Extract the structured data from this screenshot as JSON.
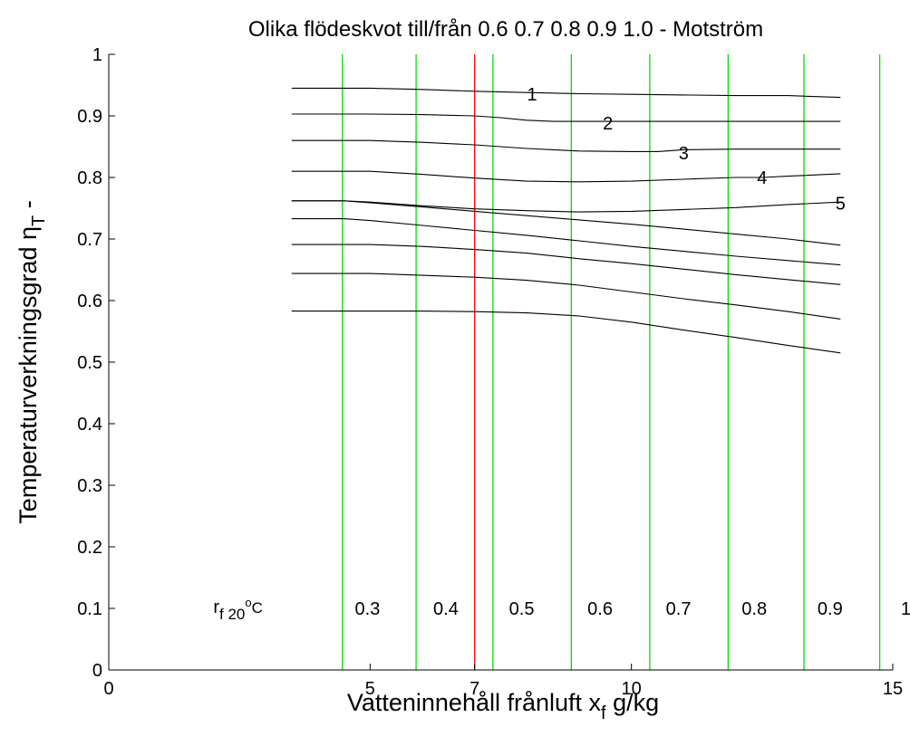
{
  "chart_data": {
    "type": "line",
    "title": "Olika flödeskvot till/från  0.6  0.7  0.8  0.9  1.0 -   Motström",
    "xlabel": {
      "main": "Vatteninnehåll frånluft  x",
      "sub": "f",
      "tail": "  g/kg"
    },
    "ylabel": {
      "main": "Temperaturverkningsgrad η",
      "sub": "T",
      "tail": "  -"
    },
    "xlim": [
      0,
      15
    ],
    "ylim": [
      0,
      1
    ],
    "xticks": [
      0,
      5,
      7,
      10,
      15
    ],
    "yticks": [
      0,
      0.1,
      0.2,
      0.3,
      0.4,
      0.5,
      0.6,
      0.7,
      0.8,
      0.9,
      1
    ],
    "grid": false,
    "series": [
      {
        "x": [
          3.5,
          5.0,
          6.0,
          7.0,
          8.0,
          9.0,
          10.0,
          11.0,
          12.0,
          13.0,
          14.0
        ],
        "y": [
          0.945,
          0.945,
          0.943,
          0.94,
          0.938,
          0.936,
          0.935,
          0.934,
          0.933,
          0.933,
          0.93
        ]
      },
      {
        "x": [
          3.5,
          5.0,
          6.0,
          7.0,
          7.5,
          8.0,
          8.5,
          9.0,
          10.0,
          11.0,
          12.0,
          13.0,
          14.0
        ],
        "y": [
          0.903,
          0.903,
          0.902,
          0.9,
          0.897,
          0.893,
          0.891,
          0.891,
          0.891,
          0.891,
          0.891,
          0.891,
          0.891
        ]
      },
      {
        "x": [
          3.5,
          5.0,
          6.0,
          7.0,
          7.5,
          8.0,
          8.5,
          9.0,
          10.0,
          10.5,
          11.0,
          12.0,
          13.0,
          14.0
        ],
        "y": [
          0.86,
          0.86,
          0.857,
          0.853,
          0.85,
          0.847,
          0.845,
          0.843,
          0.842,
          0.842,
          0.845,
          0.846,
          0.846,
          0.846
        ]
      },
      {
        "x": [
          3.5,
          5.0,
          6.0,
          7.0,
          8.0,
          9.0,
          10.0,
          11.0,
          12.0,
          12.5,
          13.0,
          14.0
        ],
        "y": [
          0.81,
          0.81,
          0.805,
          0.799,
          0.794,
          0.793,
          0.794,
          0.797,
          0.8,
          0.8,
          0.802,
          0.806
        ]
      },
      {
        "x": [
          3.5,
          4.5,
          5.0,
          6.0,
          7.0,
          8.0,
          9.0,
          10.0,
          11.0,
          12.0,
          13.0,
          14.0
        ],
        "y": [
          0.762,
          0.762,
          0.76,
          0.754,
          0.749,
          0.746,
          0.744,
          0.745,
          0.748,
          0.751,
          0.756,
          0.76
        ]
      },
      {
        "x": [
          3.5,
          4.5,
          5.0,
          6.0,
          7.0,
          8.0,
          9.0,
          10.0,
          11.0,
          12.0,
          13.0,
          14.0
        ],
        "y": [
          0.762,
          0.762,
          0.759,
          0.752,
          0.745,
          0.738,
          0.731,
          0.724,
          0.716,
          0.708,
          0.7,
          0.69
        ]
      },
      {
        "x": [
          3.5,
          4.5,
          5.0,
          6.0,
          7.0,
          8.0,
          9.0,
          10.0,
          11.0,
          12.0,
          13.0,
          14.0
        ],
        "y": [
          0.733,
          0.733,
          0.73,
          0.722,
          0.714,
          0.706,
          0.697,
          0.688,
          0.68,
          0.672,
          0.665,
          0.658
        ]
      },
      {
        "x": [
          3.5,
          5.0,
          6.0,
          7.0,
          8.0,
          9.0,
          10.0,
          11.0,
          12.0,
          13.0,
          14.0
        ],
        "y": [
          0.691,
          0.691,
          0.688,
          0.683,
          0.677,
          0.668,
          0.66,
          0.651,
          0.642,
          0.634,
          0.626
        ]
      },
      {
        "x": [
          3.5,
          5.0,
          6.0,
          7.0,
          8.0,
          9.0,
          10.0,
          11.0,
          12.0,
          13.0,
          14.0
        ],
        "y": [
          0.644,
          0.644,
          0.641,
          0.638,
          0.633,
          0.625,
          0.614,
          0.603,
          0.593,
          0.582,
          0.57
        ]
      },
      {
        "x": [
          3.5,
          5.0,
          6.0,
          7.0,
          8.0,
          9.0,
          10.0,
          11.0,
          12.0,
          13.0,
          14.0
        ],
        "y": [
          0.583,
          0.583,
          0.583,
          0.582,
          0.58,
          0.575,
          0.565,
          0.552,
          0.54,
          0.527,
          0.515
        ]
      }
    ],
    "vlines": [
      {
        "x": 4.47,
        "color": "#00dc00"
      },
      {
        "x": 5.88,
        "color": "#00dc00"
      },
      {
        "x": 7.0,
        "color": "#ff0000"
      },
      {
        "x": 7.35,
        "color": "#00dc00"
      },
      {
        "x": 8.85,
        "color": "#00dc00"
      },
      {
        "x": 10.35,
        "color": "#00dc00"
      },
      {
        "x": 11.85,
        "color": "#00dc00"
      },
      {
        "x": 13.3,
        "color": "#00dc00"
      },
      {
        "x": 14.75,
        "color": "#00dc00"
      }
    ],
    "curve_labels": [
      {
        "text": "1",
        "x": 8.1,
        "y": 0.935
      },
      {
        "text": "2",
        "x": 9.55,
        "y": 0.888
      },
      {
        "text": "3",
        "x": 11.0,
        "y": 0.84
      },
      {
        "text": "4",
        "x": 12.5,
        "y": 0.8
      },
      {
        "text": "5",
        "x": 14.0,
        "y": 0.758
      }
    ],
    "rf_label": {
      "main": "r",
      "sub": "f 20",
      "sup": "o",
      "tail": "C",
      "x": 2.0,
      "y": 0.093
    },
    "rf_values": [
      {
        "text": "0.3",
        "x": 4.95,
        "y": 0.1
      },
      {
        "text": "0.4",
        "x": 6.45,
        "y": 0.1
      },
      {
        "text": "0.5",
        "x": 7.9,
        "y": 0.1
      },
      {
        "text": "0.6",
        "x": 9.4,
        "y": 0.1
      },
      {
        "text": "0.7",
        "x": 10.9,
        "y": 0.1
      },
      {
        "text": "0.8",
        "x": 12.35,
        "y": 0.1
      },
      {
        "text": "0.9",
        "x": 13.8,
        "y": 0.1
      },
      {
        "text": "1",
        "x": 15.25,
        "y": 0.1
      }
    ],
    "colors": {
      "curves": "#000000",
      "grid_lines": "#00dc00",
      "reference_line": "#ff0000",
      "axes": "#000000"
    }
  }
}
